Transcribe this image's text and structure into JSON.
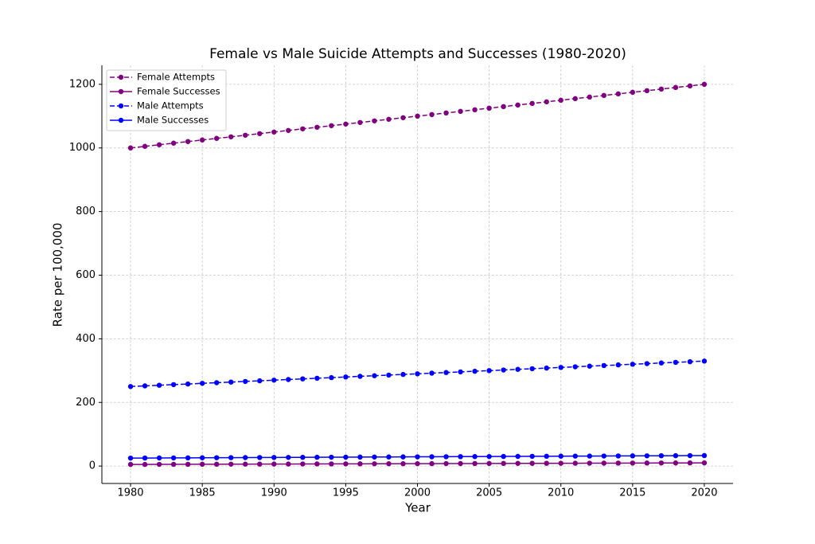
{
  "chart_data": {
    "type": "line",
    "title": "Female vs Male Suicide Attempts and Successes (1980-2020)",
    "xlabel": "Year",
    "ylabel": "Rate per 100,000",
    "x": [
      1980,
      1981,
      1982,
      1983,
      1984,
      1985,
      1986,
      1987,
      1988,
      1989,
      1990,
      1991,
      1992,
      1993,
      1994,
      1995,
      1996,
      1997,
      1998,
      1999,
      2000,
      2001,
      2002,
      2003,
      2004,
      2005,
      2006,
      2007,
      2008,
      2009,
      2010,
      2011,
      2012,
      2013,
      2014,
      2015,
      2016,
      2017,
      2018,
      2019,
      2020
    ],
    "series": [
      {
        "name": "Female Attempts",
        "color": "#800080",
        "linestyle": "dashed",
        "values": [
          1000,
          1005,
          1010,
          1015,
          1020,
          1025,
          1030,
          1035,
          1040,
          1045,
          1050,
          1055,
          1060,
          1065,
          1070,
          1075,
          1080,
          1085,
          1090,
          1095,
          1100,
          1105,
          1110,
          1115,
          1120,
          1125,
          1130,
          1135,
          1140,
          1145,
          1150,
          1155,
          1160,
          1165,
          1170,
          1175,
          1180,
          1185,
          1190,
          1195,
          1200
        ]
      },
      {
        "name": "Female Successes",
        "color": "#800080",
        "linestyle": "solid",
        "values": [
          5,
          5.125,
          5.25,
          5.375,
          5.5,
          5.625,
          5.75,
          5.875,
          6,
          6.125,
          6.25,
          6.375,
          6.5,
          6.625,
          6.75,
          6.875,
          7,
          7.125,
          7.25,
          7.375,
          7.5,
          7.625,
          7.75,
          7.875,
          8,
          8.125,
          8.25,
          8.375,
          8.5,
          8.625,
          8.75,
          8.875,
          9,
          9.125,
          9.25,
          9.375,
          9.5,
          9.625,
          9.75,
          9.875,
          10
        ]
      },
      {
        "name": "Male Attempts",
        "color": "#0000ff",
        "linestyle": "dashed",
        "values": [
          250,
          252,
          254,
          256,
          258,
          260,
          262,
          264,
          266,
          268,
          270,
          272,
          274,
          276,
          278,
          280,
          282,
          284,
          286,
          288,
          290,
          292,
          294,
          296,
          298,
          300,
          302,
          304,
          306,
          308,
          310,
          312,
          314,
          316,
          318,
          320,
          322,
          324,
          326,
          328,
          330
        ]
      },
      {
        "name": "Male Successes",
        "color": "#0000ff",
        "linestyle": "solid",
        "values": [
          25,
          25.2,
          25.4,
          25.6,
          25.8,
          26,
          26.2,
          26.4,
          26.6,
          26.8,
          27,
          27.2,
          27.4,
          27.6,
          27.8,
          28,
          28.2,
          28.4,
          28.6,
          28.8,
          29,
          29.2,
          29.4,
          29.6,
          29.8,
          30,
          30.2,
          30.4,
          30.6,
          30.8,
          31,
          31.2,
          31.4,
          31.6,
          31.8,
          32,
          32.2,
          32.4,
          32.6,
          32.8,
          33
        ]
      }
    ],
    "xlim": [
      1978,
      2022
    ],
    "xticks": [
      1980,
      1985,
      1990,
      1995,
      2000,
      2005,
      2010,
      2015,
      2020
    ],
    "ylim": [
      -54.75,
      1259.75
    ],
    "yticks": [
      0,
      200,
      400,
      600,
      800,
      1000,
      1200
    ],
    "grid": true,
    "legend": "upper-left"
  }
}
